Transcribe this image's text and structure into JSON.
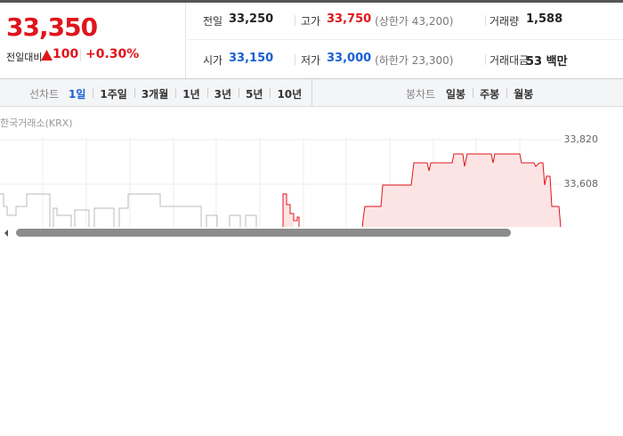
{
  "quote": {
    "price": "33,350",
    "change_label": "전일대비",
    "change": "100",
    "change_rate": "+0.30%"
  },
  "stats": [
    {
      "label": "전일",
      "value": "33,250",
      "color": "#222222"
    },
    {
      "label": "고가",
      "value": "33,750",
      "color": "#e0141b",
      "note": "(상한가 43,200)"
    },
    {
      "label": "거래량",
      "value": "1,588",
      "color": "#222222"
    },
    {
      "label": "시가",
      "value": "33,150",
      "color": "#1760d2"
    },
    {
      "label": "저가",
      "value": "33,000",
      "color": "#1760d2",
      "note": "(하한가 23,300)"
    },
    {
      "label": "거래대금",
      "value": "53 백만",
      "color": "#222222"
    }
  ],
  "tabs": {
    "line_label": "선차트",
    "line_periods": [
      "1일",
      "1주일",
      "3개월",
      "1년",
      "3년",
      "5년",
      "10년"
    ],
    "selected": 0,
    "candle_label": "봉차트",
    "candle_periods": [
      "일봉",
      "주봉",
      "월봉"
    ]
  },
  "chart": {
    "source": "한국거래소(KRX)",
    "y_labels": [
      "33,820",
      "33,608"
    ]
  }
}
